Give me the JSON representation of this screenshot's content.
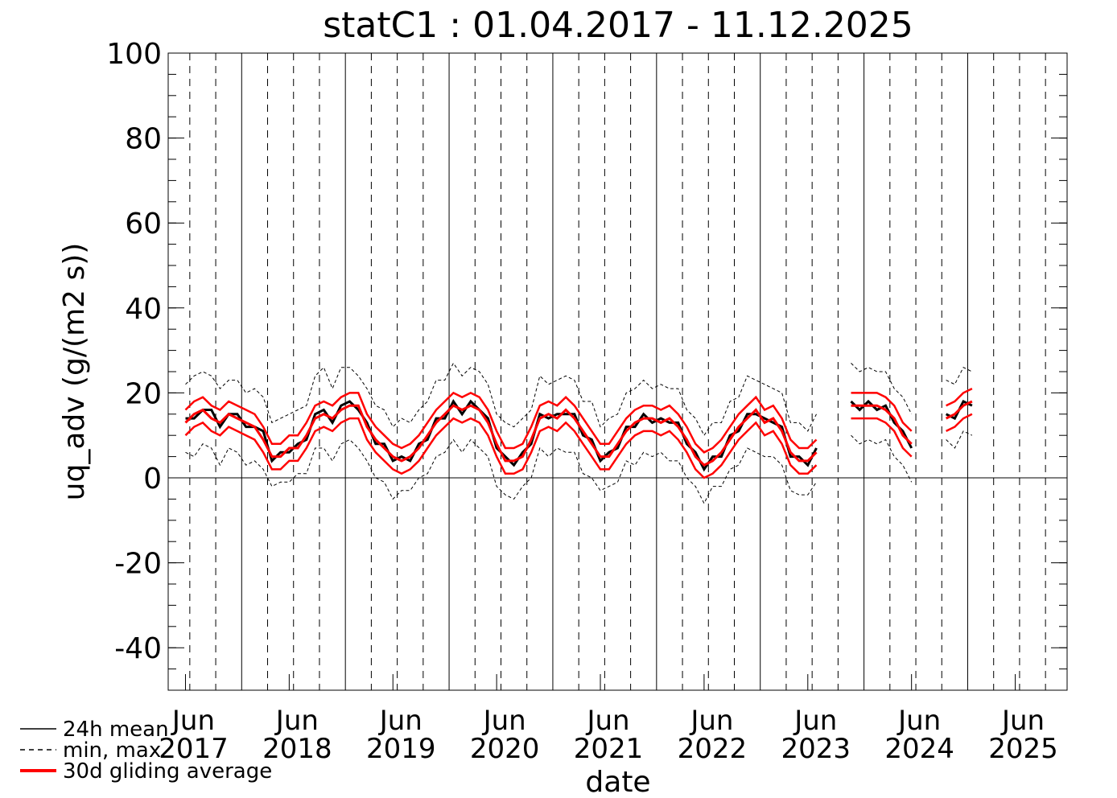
{
  "chart_data": {
    "type": "line",
    "title": "statC1 : 01.04.2017 - 11.12.2025",
    "x_label": "date",
    "y_label": "uq_adv (g/(m2 s))",
    "xlim": [
      "2017-04",
      "2025-12"
    ],
    "ylim": [
      -50,
      100
    ],
    "yticks": [
      -40,
      -20,
      0,
      20,
      40,
      60,
      80,
      100
    ],
    "xticks": [
      {
        "value": "2017-06",
        "label": [
          "Jun",
          "2017"
        ]
      },
      {
        "value": "2018-06",
        "label": [
          "Jun",
          "2018"
        ]
      },
      {
        "value": "2019-06",
        "label": [
          "Jun",
          "2019"
        ]
      },
      {
        "value": "2020-06",
        "label": [
          "Jun",
          "2020"
        ]
      },
      {
        "value": "2021-06",
        "label": [
          "Jun",
          "2021"
        ]
      },
      {
        "value": "2022-06",
        "label": [
          "Jun",
          "2022"
        ]
      },
      {
        "value": "2023-06",
        "label": [
          "Jun",
          "2023"
        ]
      },
      {
        "value": "2024-06",
        "label": [
          "Jun",
          "2024"
        ]
      },
      {
        "value": "2025-06",
        "label": [
          "Jun",
          "2025"
        ]
      }
    ],
    "x": [
      "2017-06",
      "2017-07",
      "2017-08",
      "2017-09",
      "2017-10",
      "2017-11",
      "2017-12",
      "2018-01",
      "2018-02",
      "2018-03",
      "2018-04",
      "2018-05",
      "2018-06",
      "2018-07",
      "2018-08",
      "2018-09",
      "2018-10",
      "2018-11",
      "2018-12",
      "2019-01",
      "2019-02",
      "2019-03",
      "2019-04",
      "2019-05",
      "2019-06",
      "2019-07",
      "2019-08",
      "2019-09",
      "2019-10",
      "2019-11",
      "2019-12",
      "2020-01",
      "2020-02",
      "2020-03",
      "2020-04",
      "2020-05",
      "2020-06",
      "2020-07",
      "2020-08",
      "2020-09",
      "2020-10",
      "2020-11",
      "2020-12",
      "2021-01",
      "2021-02",
      "2021-03",
      "2021-04",
      "2021-05",
      "2021-06",
      "2021-07",
      "2021-08",
      "2021-09",
      "2021-10",
      "2021-11",
      "2021-12",
      "2022-01",
      "2022-02",
      "2022-03",
      "2022-04",
      "2022-05",
      "2022-06",
      "2022-07",
      "2022-08",
      "2022-09",
      "2022-10",
      "2022-11",
      "2022-12",
      "2023-01",
      "2023-02",
      "2023-03",
      "2023-04",
      "2023-05",
      "2023-06",
      "2023-07",
      "2023-08",
      "2023-09",
      "2023-10",
      "2023-11",
      "2023-12",
      "2024-01",
      "2024-02",
      "2024-03",
      "2024-04",
      "2024-05",
      "2024-06",
      "2024-07",
      "2024-08",
      "2024-09",
      "2024-10",
      "2024-11",
      "2024-12",
      "2025-01"
    ],
    "series": [
      {
        "name": "24h mean",
        "color": "#000000",
        "values": [
          14,
          14,
          16,
          16,
          12,
          15,
          15,
          12,
          12,
          11,
          4,
          6,
          6,
          8,
          9,
          15,
          16,
          13,
          17,
          18,
          16,
          13,
          8,
          8,
          4,
          5,
          4,
          8,
          9,
          14,
          14,
          18,
          15,
          18,
          16,
          14,
          7,
          5,
          3,
          6,
          8,
          15,
          14,
          15,
          15,
          15,
          10,
          9,
          4,
          6,
          7,
          12,
          12,
          15,
          13,
          14,
          13,
          13,
          8,
          6,
          2,
          5,
          5,
          10,
          11,
          15,
          15,
          14,
          13,
          12,
          5,
          5,
          3,
          7,
          null,
          null,
          null,
          18,
          16,
          18,
          16,
          17,
          13,
          11,
          7,
          null,
          null,
          null,
          15,
          14,
          18,
          17
        ]
      },
      {
        "name": "min, max",
        "color": "#000000",
        "min": [
          6,
          5,
          8,
          7,
          3,
          7,
          6,
          3,
          4,
          2,
          -2,
          -1,
          -1,
          1,
          1,
          7,
          7,
          4,
          8,
          9,
          7,
          4,
          0,
          -1,
          -5,
          -3,
          -3,
          0,
          1,
          5,
          6,
          9,
          6,
          9,
          7,
          5,
          -2,
          -4,
          -5,
          -2,
          0,
          7,
          5,
          7,
          6,
          6,
          1,
          0,
          -3,
          -2,
          -1,
          4,
          3,
          6,
          5,
          6,
          4,
          4,
          0,
          -2,
          -6,
          -2,
          -2,
          2,
          3,
          7,
          6,
          5,
          5,
          3,
          -3,
          -4,
          -4,
          -1,
          null,
          null,
          null,
          10,
          8,
          9,
          8,
          9,
          5,
          3,
          -1,
          null,
          null,
          null,
          9,
          7,
          11,
          10
        ],
        "max": [
          22,
          24,
          25,
          24,
          21,
          23,
          23,
          20,
          21,
          19,
          13,
          14,
          15,
          16,
          17,
          24,
          26,
          21,
          26,
          26,
          24,
          21,
          17,
          16,
          12,
          14,
          13,
          16,
          18,
          23,
          23,
          27,
          24,
          26,
          25,
          22,
          15,
          13,
          12,
          14,
          16,
          24,
          22,
          23,
          24,
          23,
          18,
          18,
          12,
          14,
          15,
          20,
          21,
          23,
          21,
          22,
          21,
          21,
          16,
          14,
          10,
          13,
          13,
          18,
          19,
          24,
          23,
          22,
          21,
          20,
          13,
          13,
          11,
          15,
          null,
          null,
          null,
          27,
          25,
          26,
          25,
          25,
          21,
          19,
          15,
          null,
          null,
          null,
          23,
          22,
          26,
          25
        ]
      },
      {
        "name": "30d gliding average",
        "color": "#ff0000",
        "values": [
          13,
          15,
          16,
          14,
          13,
          15,
          14,
          13,
          12,
          9,
          5,
          5,
          7,
          7,
          10,
          14,
          15,
          14,
          16,
          17,
          17,
          12,
          9,
          7,
          5,
          4,
          5,
          7,
          10,
          13,
          15,
          17,
          16,
          17,
          16,
          13,
          8,
          4,
          4,
          5,
          9,
          14,
          15,
          14,
          16,
          14,
          11,
          8,
          5,
          5,
          8,
          11,
          13,
          14,
          14,
          13,
          14,
          12,
          9,
          5,
          3,
          4,
          6,
          9,
          12,
          14,
          16,
          13,
          14,
          11,
          6,
          4,
          4,
          6,
          null,
          null,
          null,
          17,
          17,
          17,
          17,
          16,
          14,
          10,
          8,
          null,
          null,
          null,
          14,
          15,
          17,
          18
        ],
        "upper": [
          16,
          18,
          19,
          17,
          16,
          18,
          17,
          16,
          15,
          12,
          8,
          8,
          10,
          10,
          13,
          17,
          18,
          17,
          19,
          20,
          20,
          15,
          12,
          10,
          8,
          7,
          8,
          10,
          13,
          16,
          18,
          20,
          19,
          20,
          19,
          16,
          11,
          7,
          7,
          8,
          12,
          17,
          18,
          17,
          19,
          17,
          14,
          11,
          8,
          8,
          11,
          14,
          16,
          17,
          17,
          16,
          17,
          15,
          12,
          8,
          6,
          7,
          9,
          12,
          15,
          17,
          19,
          16,
          17,
          14,
          9,
          7,
          7,
          9,
          null,
          null,
          null,
          20,
          20,
          20,
          20,
          19,
          17,
          13,
          11,
          null,
          null,
          null,
          17,
          18,
          20,
          21
        ],
        "lower": [
          10,
          12,
          13,
          11,
          10,
          12,
          11,
          10,
          9,
          6,
          2,
          2,
          4,
          4,
          7,
          11,
          12,
          11,
          13,
          14,
          14,
          9,
          6,
          4,
          2,
          1,
          2,
          4,
          7,
          10,
          12,
          14,
          13,
          14,
          13,
          10,
          5,
          1,
          1,
          2,
          6,
          11,
          12,
          11,
          13,
          11,
          8,
          5,
          2,
          2,
          5,
          8,
          10,
          11,
          11,
          10,
          11,
          9,
          6,
          2,
          0,
          1,
          3,
          6,
          9,
          11,
          13,
          10,
          11,
          8,
          3,
          1,
          1,
          3,
          null,
          null,
          null,
          14,
          14,
          14,
          14,
          13,
          11,
          7,
          5,
          null,
          null,
          null,
          11,
          12,
          14,
          15
        ]
      }
    ]
  }
}
